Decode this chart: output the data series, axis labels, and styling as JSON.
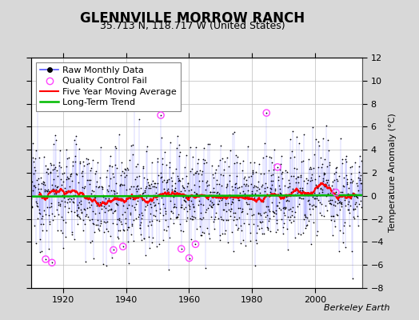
{
  "title": "GLENNVILLE MORROW RANCH",
  "subtitle": "35.713 N, 118.717 W (United States)",
  "ylabel": "Temperature Anomaly (°C)",
  "credit": "Berkeley Earth",
  "ylim": [
    -8,
    12
  ],
  "yticks": [
    -8,
    -6,
    -4,
    -2,
    0,
    2,
    4,
    6,
    8,
    10,
    12
  ],
  "year_start": 1910,
  "year_end": 2015,
  "xticks": [
    1920,
    1940,
    1960,
    1980,
    2000
  ],
  "background_color": "#d8d8d8",
  "plot_bg_color": "#ffffff",
  "grid_color": "#bbbbbb",
  "raw_line_color": "#5555ff",
  "raw_line_alpha": 0.45,
  "raw_dot_color": "#000000",
  "qc_fail_color": "#ff44ff",
  "moving_avg_color": "#ff0000",
  "trend_color": "#00bb00",
  "seed": 12345,
  "n_months": 1260,
  "legend_fontsize": 8,
  "title_fontsize": 12,
  "subtitle_fontsize": 9,
  "credit_fontsize": 8
}
